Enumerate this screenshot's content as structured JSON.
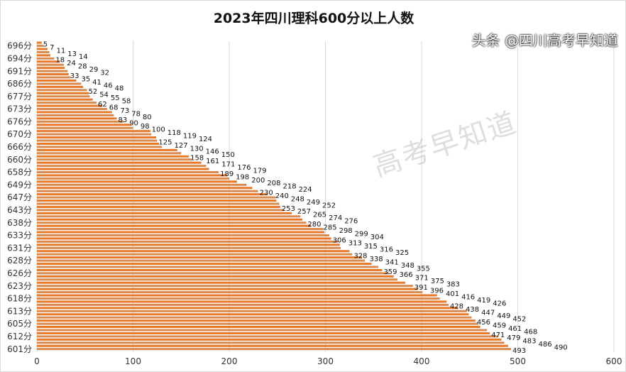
{
  "chart_data": {
    "type": "bar",
    "orientation": "horizontal",
    "title": "2023年四川理科600分以上人数",
    "xlim": [
      0,
      600
    ],
    "xticks": [
      0,
      100,
      200,
      300,
      400,
      500,
      600
    ],
    "grid": true,
    "bar_color": "#E8782A",
    "ytick_labels": [
      "696分",
      "694分",
      "691分",
      "686分",
      "677分",
      "673分",
      "676分",
      "670分",
      "666分",
      "660分",
      "658分",
      "649分",
      "647分",
      "643分",
      "638分",
      "633分",
      "631分",
      "628分",
      "626分",
      "623分",
      "618分",
      "613分",
      "605分",
      "612分",
      "601分"
    ],
    "values": [
      5,
      7,
      11,
      13,
      14,
      18,
      24,
      28,
      29,
      32,
      33,
      35,
      41,
      46,
      48,
      52,
      54,
      55,
      58,
      62,
      68,
      73,
      78,
      80,
      83,
      90,
      98,
      100,
      118,
      119,
      124,
      125,
      127,
      130,
      146,
      150,
      158,
      161,
      171,
      176,
      179,
      189,
      198,
      200,
      208,
      218,
      224,
      230,
      240,
      248,
      249,
      252,
      253,
      257,
      265,
      274,
      276,
      280,
      285,
      298,
      299,
      304,
      306,
      313,
      315,
      316,
      325,
      328,
      338,
      341,
      348,
      355,
      359,
      366,
      371,
      375,
      383,
      391,
      396,
      401,
      416,
      419,
      426,
      428,
      438,
      447,
      449,
      452,
      456,
      459,
      461,
      468,
      471,
      479,
      483,
      486,
      490,
      493
    ]
  },
  "watermark": "高考早知道",
  "credit": "头条 @四川高考早知道"
}
